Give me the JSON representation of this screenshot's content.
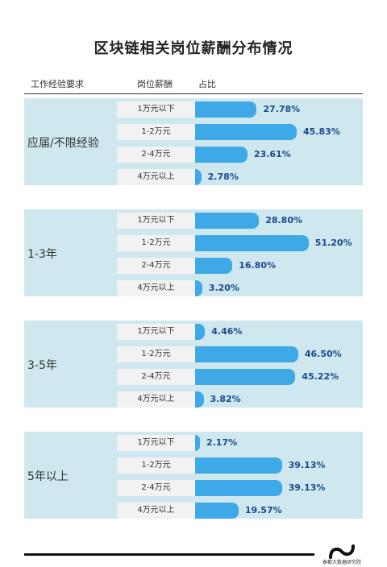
{
  "title": "区块链相关岗位薪酬分布情况",
  "headers": {
    "experience": "工作经验要求",
    "salary": "岗位薪酬",
    "ratio": "占比"
  },
  "footer": {
    "logo_text": "泰都大数据研究院"
  },
  "chart_data": {
    "type": "bar",
    "title": "区块链相关岗位薪酬分布情况",
    "categories": [
      "1万元以下",
      "1-2万元",
      "2-4万元",
      "4万元以上"
    ],
    "groups": [
      {
        "label": "应届/不限经验",
        "values": [
          27.78,
          45.83,
          23.61,
          2.78
        ],
        "value_labels": [
          "27.78%",
          "45.83%",
          "23.61%",
          "2.78%"
        ]
      },
      {
        "label": "1-3年",
        "values": [
          28.8,
          51.2,
          16.8,
          3.2
        ],
        "value_labels": [
          "28.80%",
          "51.20%",
          "16.80%",
          "3.20%"
        ]
      },
      {
        "label": "3-5年",
        "values": [
          4.46,
          46.5,
          45.22,
          3.82
        ],
        "value_labels": [
          "4.46%",
          "46.50%",
          "45.22%",
          "3.82%"
        ]
      },
      {
        "label": "5年以上",
        "values": [
          2.17,
          39.13,
          39.13,
          19.57
        ],
        "value_labels": [
          "2.17%",
          "39.13%",
          "39.13%",
          "19.57%"
        ]
      }
    ],
    "colors": {
      "bar": "#3ea9e6",
      "group_bg": "#cfe8ef",
      "label_box": "#f2f2f2",
      "value_text": "#1a4a8c"
    }
  }
}
